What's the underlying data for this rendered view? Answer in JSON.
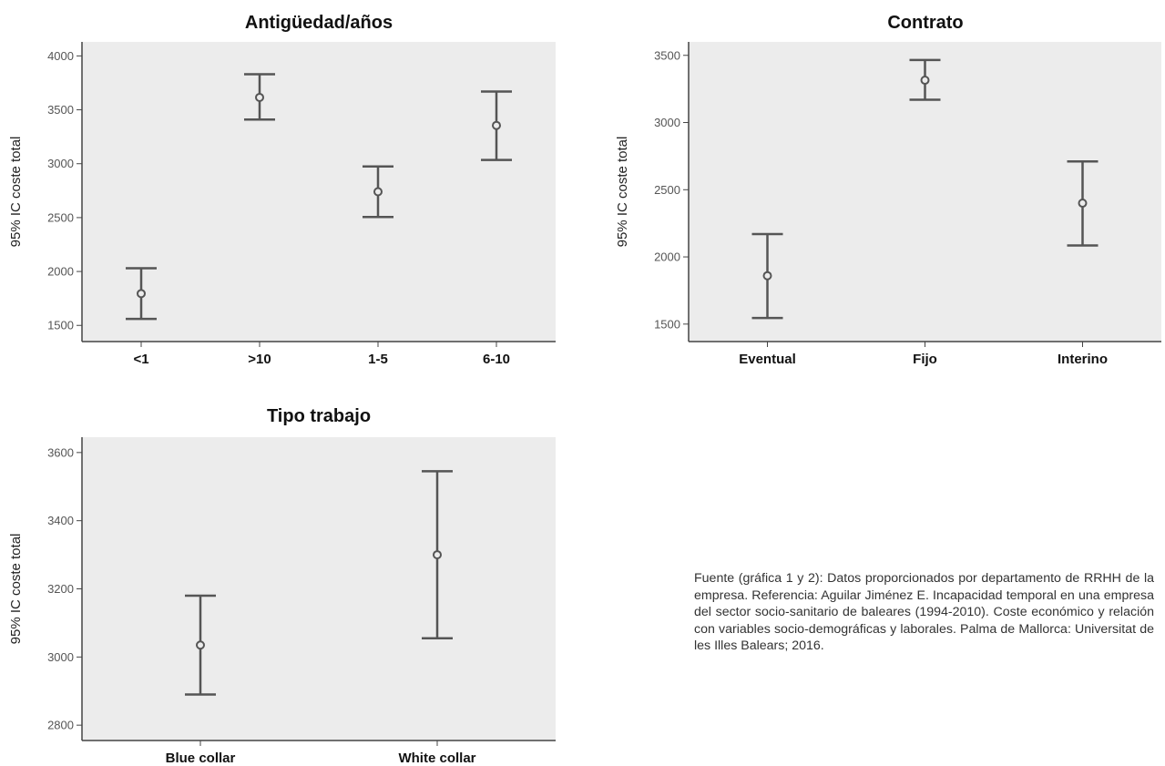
{
  "chart_data": [
    {
      "type": "errorbar",
      "title": "Antigüedad/años",
      "ylabel": "95% IC coste total",
      "xlabel": "",
      "categories": [
        "<1",
        ">10",
        "1-5",
        "6-10"
      ],
      "means": [
        1795,
        3615,
        2740,
        3355
      ],
      "lower": [
        1560,
        3410,
        2505,
        3035
      ],
      "upper": [
        2030,
        3830,
        2975,
        3670
      ],
      "yticks": [
        1500,
        2000,
        2500,
        3000,
        3500,
        4000
      ],
      "ylim": [
        1350,
        4130
      ],
      "grid": false
    },
    {
      "type": "errorbar",
      "title": "Contrato",
      "ylabel": "95% IC coste total",
      "xlabel": "",
      "categories": [
        "Eventual",
        "Fijo",
        "Interino"
      ],
      "means": [
        1860,
        3315,
        2400
      ],
      "lower": [
        1545,
        3170,
        2085
      ],
      "upper": [
        2170,
        3465,
        2710
      ],
      "yticks": [
        1500,
        2000,
        2500,
        3000,
        3500
      ],
      "ylim": [
        1370,
        3600
      ],
      "grid": false
    },
    {
      "type": "errorbar",
      "title": "Tipo trabajo",
      "ylabel": "95% IC coste total",
      "xlabel": "",
      "categories": [
        "Blue collar",
        "White collar"
      ],
      "means": [
        3035,
        3300
      ],
      "lower": [
        2890,
        3055
      ],
      "upper": [
        3180,
        3545
      ],
      "yticks": [
        2800,
        3000,
        3200,
        3400,
        3600
      ],
      "ylim": [
        2755,
        3645
      ],
      "grid": false
    }
  ],
  "source_note": "Fuente (gráfica 1 y 2): Datos proporcionados por departamento de RRHH de la empresa. Referencia: Aguilar Jiménez E. Incapacidad temporal en una empresa del sector socio-sanitario de baleares (1994-2010). Coste económico y relación con variables socio-demográficas y laborales. Palma de Mallorca: Universitat de les Illes Balears; 2016.",
  "colors": {
    "plot_background": "#ececec",
    "marks": "#555555",
    "axis": "#444444",
    "tick_text": "#555555"
  }
}
